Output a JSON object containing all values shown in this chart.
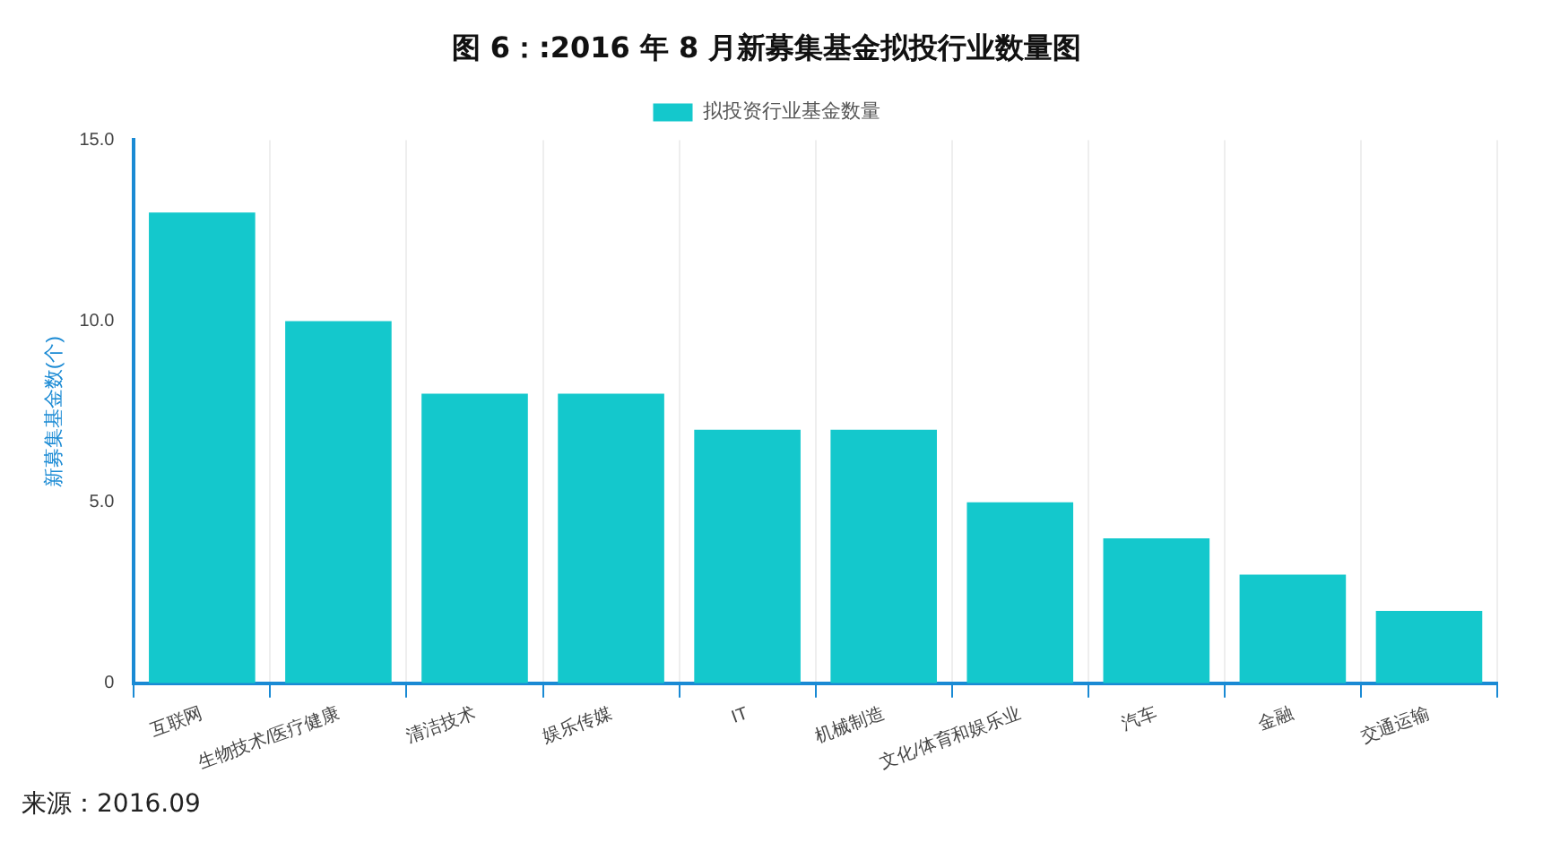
{
  "chart_data": {
    "type": "bar",
    "title": "图 6：:2016 年 8 月新募集基金拟投行业数量图",
    "ylabel": "新募集基金数(个)",
    "categories": [
      "互联网",
      "生物技术/医疗健康",
      "清洁技术",
      "娱乐传媒",
      "IT",
      "机械制造",
      "文化/体育和娱乐业",
      "汽车",
      "金融",
      "交通运输"
    ],
    "series": [
      {
        "name": "拟投资行业基金数量",
        "color": "#14c8cc",
        "values": [
          13,
          10,
          8,
          8,
          7,
          7,
          5,
          4,
          3,
          2
        ]
      }
    ],
    "ylim": [
      0,
      15
    ],
    "yticks": [
      {
        "value": 0,
        "label": "0"
      },
      {
        "value": 5,
        "label": "5.0"
      },
      {
        "value": 10,
        "label": "10.0"
      },
      {
        "value": 15,
        "label": "15.0"
      }
    ],
    "grid": "x",
    "legend": "top",
    "annotations": [
      "来源：2016.09"
    ]
  }
}
